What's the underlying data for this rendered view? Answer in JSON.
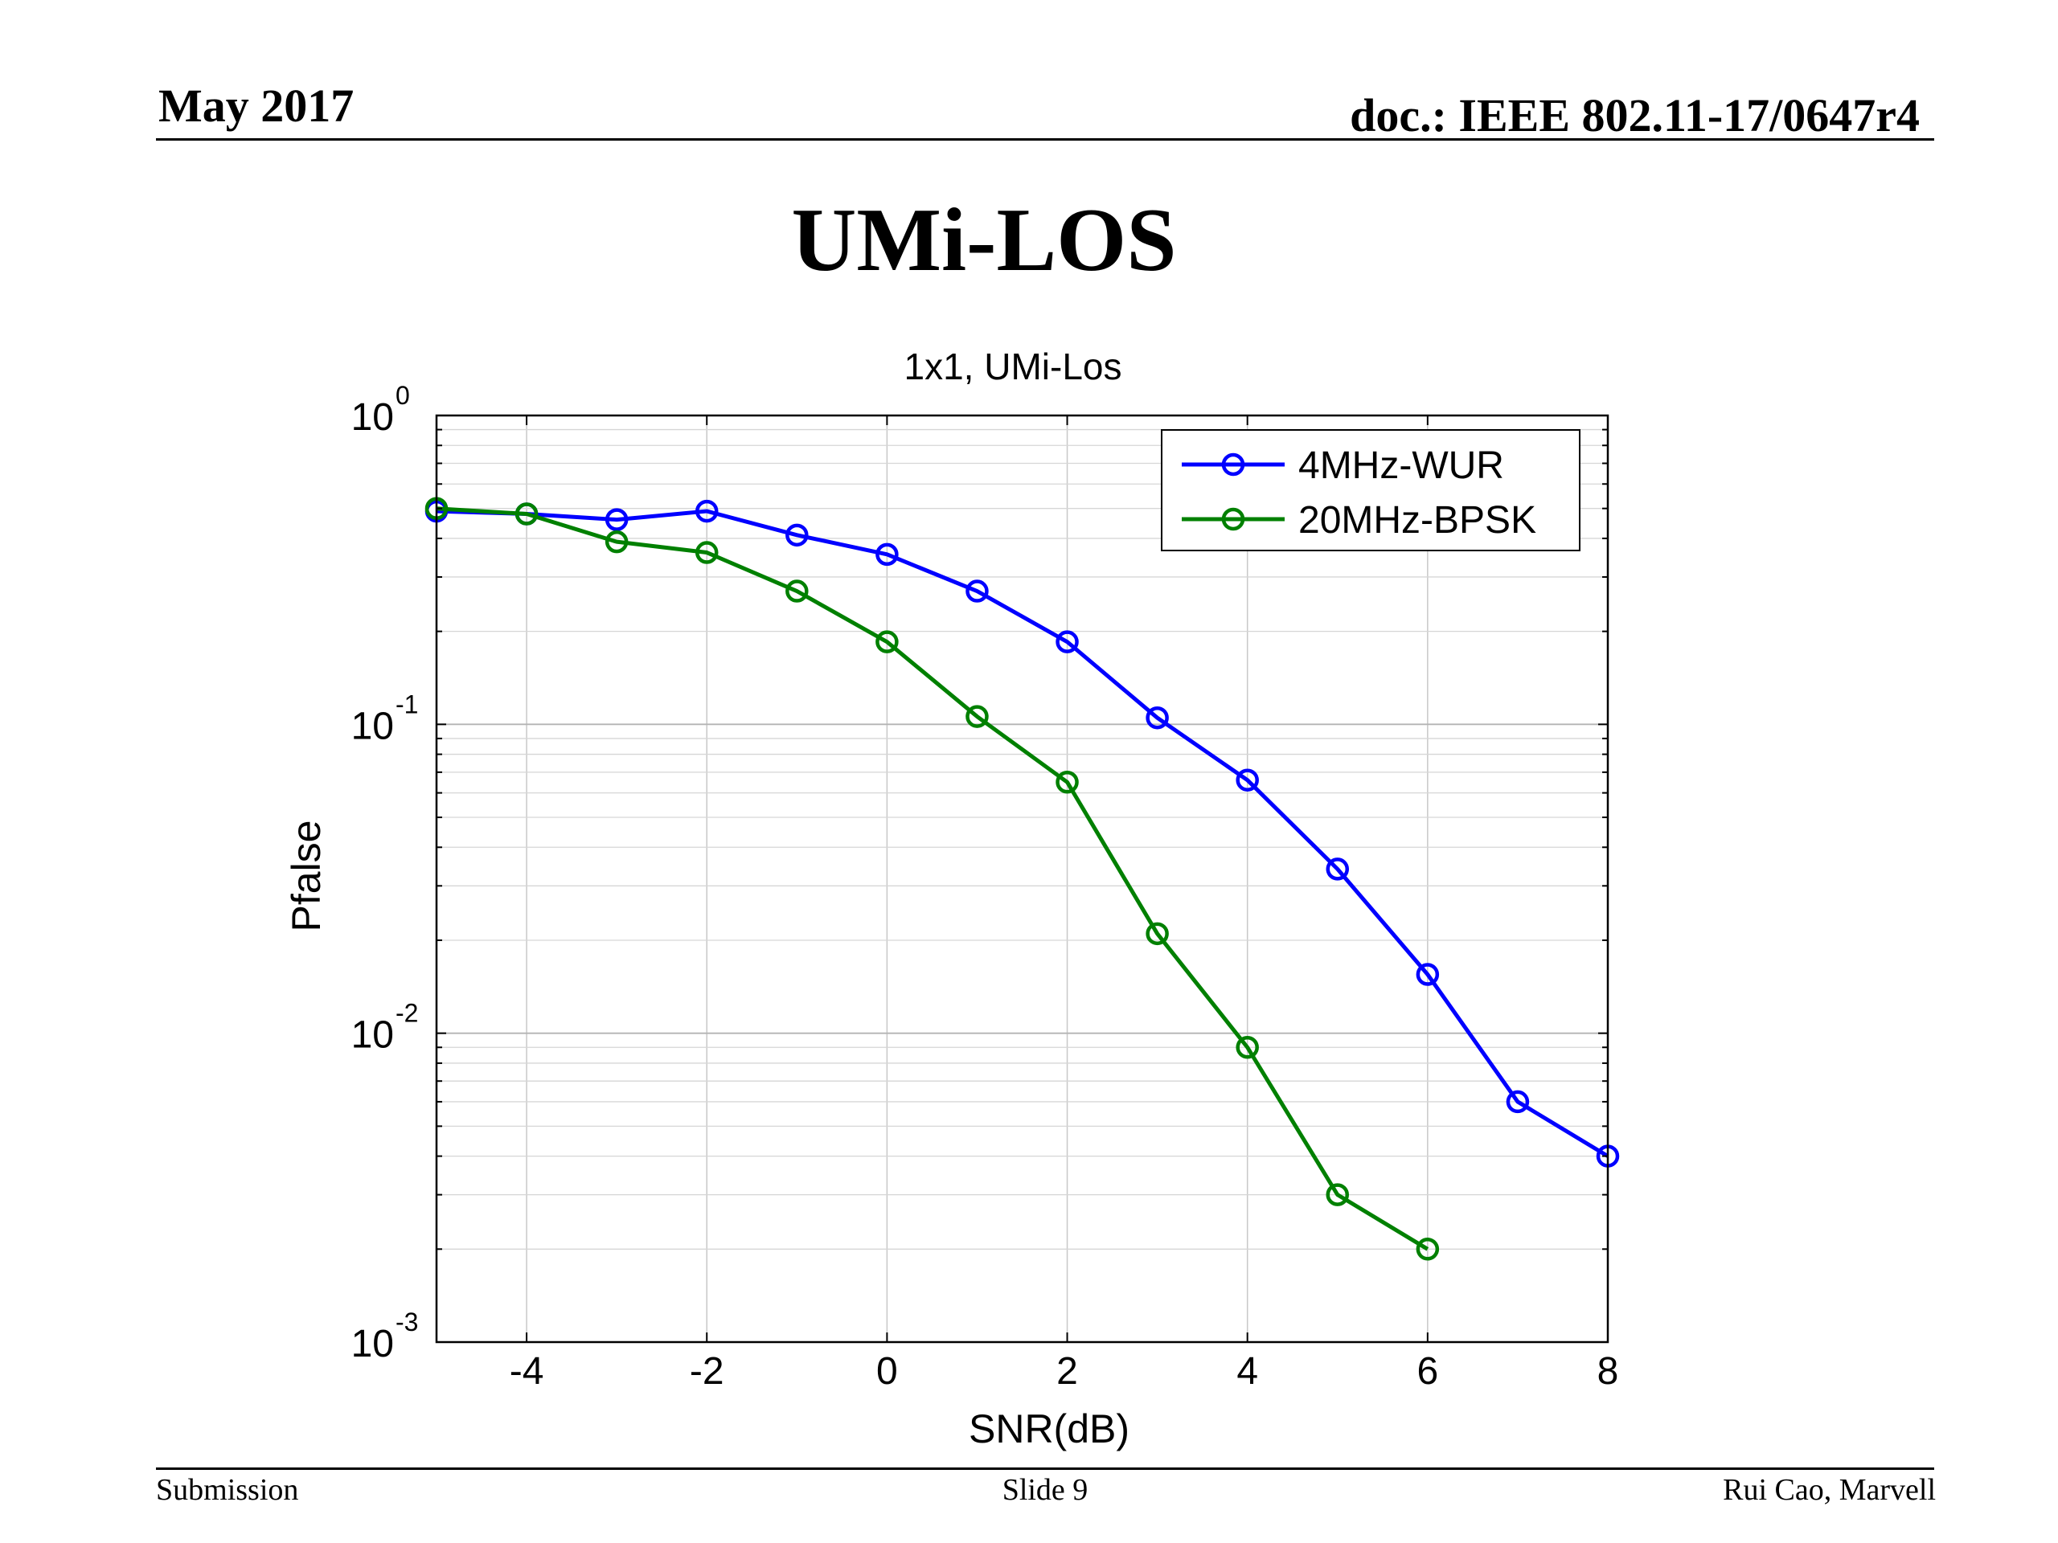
{
  "slide": {
    "header_left": "May 2017",
    "header_right": "doc.: IEEE 802.11-17/0647r4",
    "title": "UMi-LOS",
    "footer_left": "Submission",
    "footer_center": "Slide 9",
    "footer_right": "Rui Cao, Marvell"
  },
  "chart_data": {
    "type": "line",
    "title": "1x1, UMi-Los",
    "xlabel": "SNR(dB)",
    "ylabel": "Pfalse",
    "xlim": [
      -5,
      8
    ],
    "ylim": [
      0.001,
      1
    ],
    "yscale": "log",
    "grid": true,
    "legend_position": "top-right",
    "x_ticks": [
      -4,
      -2,
      0,
      2,
      4,
      6,
      8
    ],
    "y_ticks": [
      {
        "base": "10",
        "exp": "0",
        "value": 1
      },
      {
        "base": "10",
        "exp": "-1",
        "value": 0.1
      },
      {
        "base": "10",
        "exp": "-2",
        "value": 0.01
      },
      {
        "base": "10",
        "exp": "-3",
        "value": 0.001
      }
    ],
    "series": [
      {
        "name": "4MHz-WUR",
        "color": "#0000ff",
        "marker": "circle",
        "x": [
          -5,
          -4,
          -3,
          -2,
          -1,
          0,
          1,
          2,
          3,
          4,
          5,
          6,
          7,
          8
        ],
        "y": [
          0.49,
          0.48,
          0.46,
          0.49,
          0.41,
          0.355,
          0.27,
          0.185,
          0.105,
          0.066,
          0.034,
          0.0155,
          0.006,
          0.004
        ]
      },
      {
        "name": "20MHz-BPSK",
        "color": "#008000",
        "marker": "circle",
        "x": [
          -5,
          -4,
          -3,
          -2,
          -1,
          0,
          1,
          2,
          3,
          4,
          5,
          6
        ],
        "y": [
          0.5,
          0.48,
          0.39,
          0.36,
          0.27,
          0.185,
          0.106,
          0.065,
          0.021,
          0.009,
          0.003,
          0.002
        ]
      }
    ]
  }
}
